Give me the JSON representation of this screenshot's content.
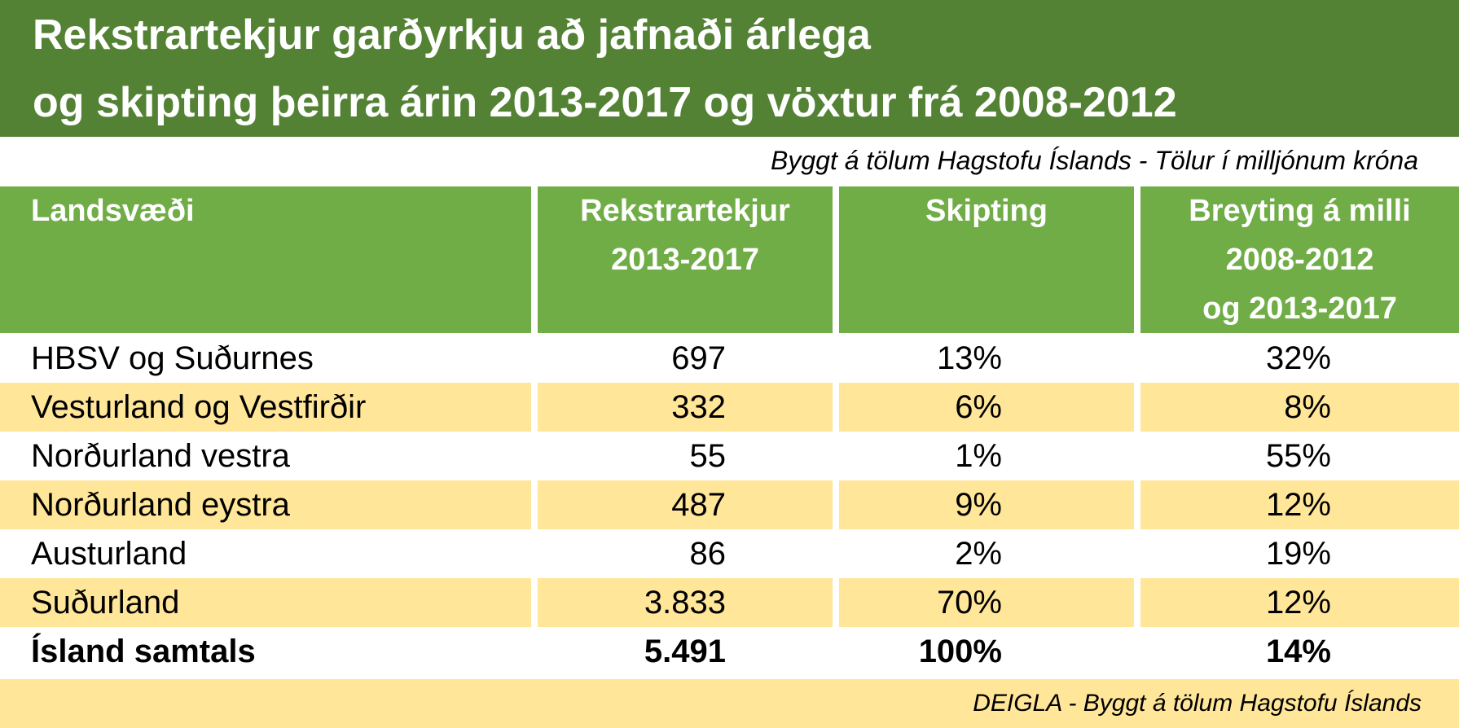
{
  "title_lines": [
    "Rekstrartekjur garðyrkju að jafnaði árlega",
    "og skipting þeirra árin 2013-2017 og vöxtur frá 2008-2012"
  ],
  "subtitle": "Byggt á tölum Hagstofu Íslands - Tölur í milljónum króna",
  "footer": "DEIGLA - Byggt á tölum Hagstofu Íslands",
  "colors": {
    "title_bg": "#548235",
    "header_bg": "#70ad47",
    "alt_row_bg": "#ffe699"
  },
  "chart_data": {
    "type": "table",
    "columns": [
      {
        "lines": [
          "Landsvæði"
        ]
      },
      {
        "lines": [
          "Rekstrartekjur",
          "2013-2017"
        ]
      },
      {
        "lines": [
          "Skipting"
        ]
      },
      {
        "lines": [
          "Breyting á milli",
          "2008-2012",
          "og 2013-2017"
        ]
      }
    ],
    "rows": [
      {
        "region": "HBSV og Suðurnes",
        "revenue": "697",
        "share": "13%",
        "change": "32%"
      },
      {
        "region": "Vesturland og Vestfirðir",
        "revenue": "332",
        "share": "6%",
        "change": "8%"
      },
      {
        "region": "Norðurland vestra",
        "revenue": "55",
        "share": "1%",
        "change": "55%"
      },
      {
        "region": "Norðurland eystra",
        "revenue": "487",
        "share": "9%",
        "change": "12%"
      },
      {
        "region": "Austurland",
        "revenue": "86",
        "share": "2%",
        "change": "19%"
      },
      {
        "region": "Suðurland",
        "revenue": "3.833",
        "share": "70%",
        "change": "12%"
      }
    ],
    "total": {
      "region": "Ísland samtals",
      "revenue": "5.491",
      "share": "100%",
      "change": "14%"
    }
  }
}
